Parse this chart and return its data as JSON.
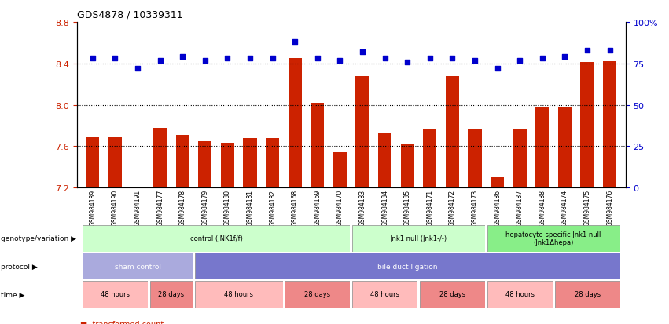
{
  "title": "GDS4878 / 10339311",
  "samples": [
    "GSM984189",
    "GSM984190",
    "GSM984191",
    "GSM984177",
    "GSM984178",
    "GSM984179",
    "GSM984180",
    "GSM984181",
    "GSM984182",
    "GSM984168",
    "GSM984169",
    "GSM984170",
    "GSM984183",
    "GSM984184",
    "GSM984185",
    "GSM984171",
    "GSM984172",
    "GSM984173",
    "GSM984186",
    "GSM984187",
    "GSM984188",
    "GSM984174",
    "GSM984175",
    "GSM984176"
  ],
  "bar_values": [
    7.69,
    7.69,
    7.21,
    7.78,
    7.71,
    7.65,
    7.63,
    7.68,
    7.68,
    8.45,
    8.02,
    7.54,
    8.28,
    7.72,
    7.62,
    7.76,
    8.28,
    7.76,
    7.31,
    7.76,
    7.98,
    7.98,
    8.41,
    8.42
  ],
  "dot_values": [
    78,
    78,
    72,
    77,
    79,
    77,
    78,
    78,
    78,
    88,
    78,
    77,
    82,
    78,
    76,
    78,
    78,
    77,
    72,
    77,
    78,
    79,
    83,
    83
  ],
  "bar_color": "#cc2200",
  "dot_color": "#0000cc",
  "ylim_left": [
    7.2,
    8.8
  ],
  "ylim_right": [
    0,
    100
  ],
  "yticks_left": [
    7.2,
    7.6,
    8.0,
    8.4,
    8.8
  ],
  "yticks_right": [
    0,
    25,
    50,
    75,
    100
  ],
  "ytick_labels_right": [
    "0",
    "25",
    "50",
    "75",
    "100%"
  ],
  "hlines": [
    7.6,
    8.0,
    8.4
  ],
  "genotype_groups": [
    {
      "label": "control (JNK1f/f)",
      "start": 0,
      "end": 11,
      "color": "#ccffcc"
    },
    {
      "label": "Jnk1 null (Jnk1-/-)",
      "start": 12,
      "end": 17,
      "color": "#ccffcc"
    },
    {
      "label": "hepatocyte-specific Jnk1 null\n(Jnk1Δhepa)",
      "start": 18,
      "end": 23,
      "color": "#88ee88"
    }
  ],
  "protocol_groups": [
    {
      "label": "sham control",
      "start": 0,
      "end": 4,
      "color": "#aaaadd"
    },
    {
      "label": "bile duct ligation",
      "start": 5,
      "end": 23,
      "color": "#7777cc"
    }
  ],
  "time_groups": [
    {
      "label": "48 hours",
      "start": 0,
      "end": 2,
      "color": "#ffbbbb"
    },
    {
      "label": "28 days",
      "start": 3,
      "end": 4,
      "color": "#ee8888"
    },
    {
      "label": "48 hours",
      "start": 5,
      "end": 8,
      "color": "#ffbbbb"
    },
    {
      "label": "28 days",
      "start": 9,
      "end": 11,
      "color": "#ee8888"
    },
    {
      "label": "48 hours",
      "start": 12,
      "end": 14,
      "color": "#ffbbbb"
    },
    {
      "label": "28 days",
      "start": 15,
      "end": 17,
      "color": "#ee8888"
    },
    {
      "label": "48 hours",
      "start": 18,
      "end": 20,
      "color": "#ffbbbb"
    },
    {
      "label": "28 days",
      "start": 21,
      "end": 23,
      "color": "#ee8888"
    }
  ]
}
